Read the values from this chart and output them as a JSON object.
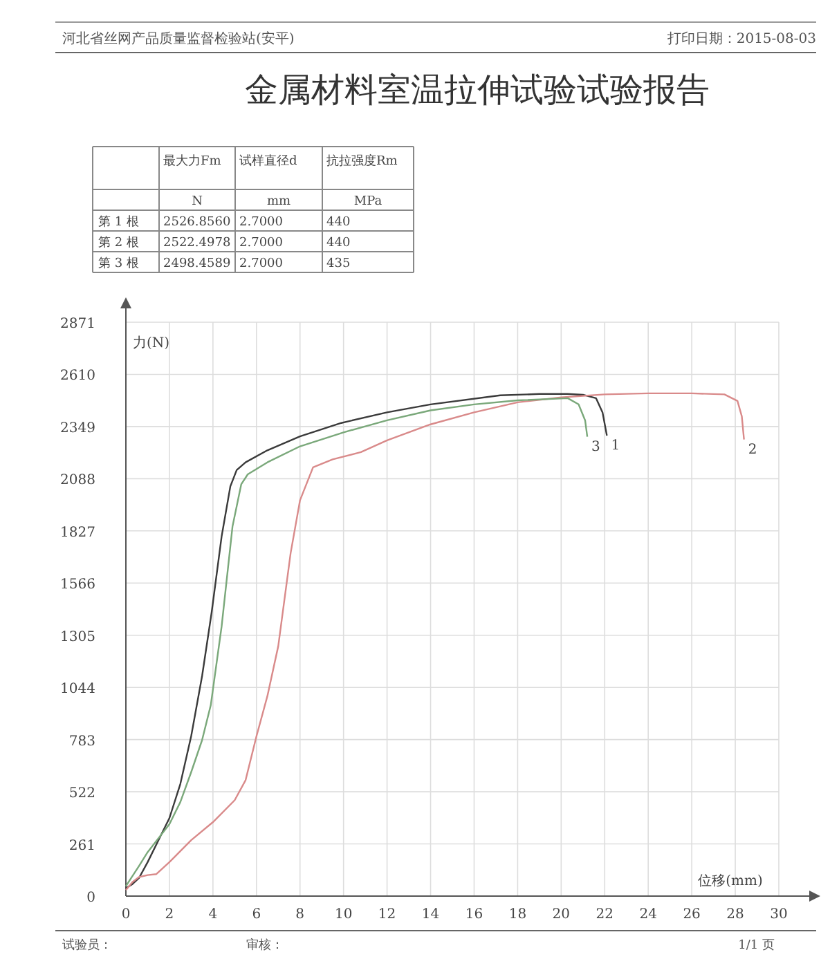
{
  "chart_data": {
    "type": "line",
    "title": "金属材料室温拉伸试验试验报告",
    "xlabel": "位移(mm)",
    "ylabel": "力(N)",
    "xlim": [
      0,
      30
    ],
    "xticks": [
      0,
      2,
      4,
      6,
      8,
      10,
      12,
      14,
      16,
      18,
      20,
      22,
      24,
      26,
      28,
      30
    ],
    "ylim": [
      0,
      2871
    ],
    "yticks": [
      0,
      261,
      522,
      783,
      1044,
      1305,
      1566,
      1827,
      2088,
      2349,
      2610,
      2871
    ],
    "grid": true,
    "line_style": "solid",
    "series": [
      {
        "color": "#3a3a3a",
        "x": [
          0,
          0.3,
          0.6,
          1,
          1.5,
          2,
          2.5,
          3,
          3.5,
          3.94,
          4.4,
          4.8,
          5.09,
          5.5,
          6.5,
          8,
          9.9,
          12,
          14,
          17.2,
          19,
          20.3,
          21,
          21.6,
          21.9,
          22.1
        ],
        "values": [
          40,
          60,
          90,
          170,
          280,
          390,
          560,
          800,
          1100,
          1419,
          1800,
          2050,
          2131,
          2170,
          2230,
          2300,
          2367,
          2420,
          2460,
          2505,
          2512,
          2512,
          2508,
          2491,
          2420,
          2304
        ]
      },
      {
        "color": "#d98a8a",
        "x": [
          0,
          0.3,
          0.6,
          1,
          1.4,
          2,
          3,
          4,
          5,
          5.5,
          6,
          6.5,
          7,
          7.57,
          8,
          8.6,
          9.5,
          10.8,
          12,
          14,
          16,
          18,
          20,
          22,
          24,
          26,
          27.5,
          28.1,
          28.3,
          28.4
        ],
        "values": [
          30,
          70,
          95,
          105,
          110,
          170,
          280,
          370,
          480,
          580,
          800,
          1000,
          1250,
          1716,
          1980,
          2145,
          2185,
          2221,
          2280,
          2360,
          2420,
          2470,
          2495,
          2510,
          2515,
          2515,
          2510,
          2477,
          2400,
          2284
        ]
      },
      {
        "color": "#7aa87a",
        "x": [
          0,
          0.3,
          0.6,
          1,
          1.5,
          2,
          2.5,
          3,
          3.5,
          3.9,
          4.4,
          4.9,
          5.3,
          5.6,
          6.5,
          8,
          10,
          12,
          14,
          16,
          18,
          20.3,
          20.8,
          21.1,
          21.2
        ],
        "values": [
          50,
          100,
          150,
          220,
          290,
          360,
          470,
          620,
          780,
          955,
          1350,
          1850,
          2060,
          2110,
          2170,
          2250,
          2320,
          2380,
          2430,
          2460,
          2480,
          2491,
          2460,
          2380,
          2298
        ]
      }
    ],
    "annotations": [
      "河北省丝网产品质量监督检验站(安平)",
      "打印日期：2015-08-03",
      "最大力Fm",
      "试样直径d",
      "抗拉强度Rm",
      "N",
      "mm",
      "MPa",
      "第 1 根",
      "2526.8560",
      "2.7000",
      "440",
      "第 2 根",
      "2522.4978",
      "2.7000",
      "440",
      "第 3 根",
      "2498.4589",
      "2.7000",
      "435",
      "试验员：",
      "审核：",
      "1/1 页",
      {
        "text": "1",
        "x": 22.1,
        "y": 2304
      },
      {
        "text": "2",
        "x": 28.4,
        "y": 2284
      },
      {
        "text": "3",
        "x": 21.2,
        "y": 2298
      }
    ]
  }
}
